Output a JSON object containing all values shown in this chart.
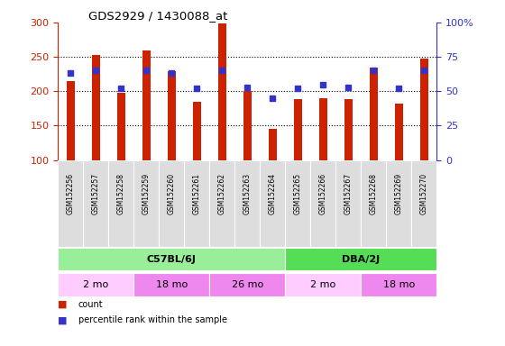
{
  "title": "GDS2929 / 1430088_at",
  "samples": [
    "GSM152256",
    "GSM152257",
    "GSM152258",
    "GSM152259",
    "GSM152260",
    "GSM152261",
    "GSM152262",
    "GSM152263",
    "GSM152264",
    "GSM152265",
    "GSM152266",
    "GSM152267",
    "GSM152268",
    "GSM152269",
    "GSM152270"
  ],
  "counts": [
    215,
    253,
    198,
    259,
    229,
    185,
    298,
    200,
    145,
    188,
    190,
    188,
    235,
    182,
    247
  ],
  "percentile_ranks": [
    63,
    65,
    52,
    65,
    63,
    52,
    65,
    53,
    45,
    52,
    55,
    53,
    65,
    52,
    65
  ],
  "ymin": 100,
  "ymax": 300,
  "yticks_left": [
    100,
    150,
    200,
    250,
    300
  ],
  "yticks_right": [
    0,
    25,
    50,
    75,
    100
  ],
  "bar_color": "#cc2200",
  "dot_color": "#3333cc",
  "background_color": "#ffffff",
  "plot_bg_color": "#ffffff",
  "strain_groups": [
    {
      "label": "C57BL/6J",
      "start": 0,
      "end": 9,
      "color": "#99ee99"
    },
    {
      "label": "DBA/2J",
      "start": 9,
      "end": 15,
      "color": "#55dd55"
    }
  ],
  "age_groups": [
    {
      "label": "2 mo",
      "start": 0,
      "end": 3,
      "color": "#ffccff"
    },
    {
      "label": "18 mo",
      "start": 3,
      "end": 6,
      "color": "#ee88ee"
    },
    {
      "label": "26 mo",
      "start": 6,
      "end": 9,
      "color": "#ee88ee"
    },
    {
      "label": "2 mo",
      "start": 9,
      "end": 12,
      "color": "#ffccff"
    },
    {
      "label": "18 mo",
      "start": 12,
      "end": 15,
      "color": "#ee88ee"
    }
  ],
  "tick_label_color_left": "#cc2200",
  "tick_label_color_right": "#3333cc",
  "sample_box_color": "#dddddd",
  "legend_count_color": "#cc2200",
  "legend_dot_color": "#3333cc"
}
